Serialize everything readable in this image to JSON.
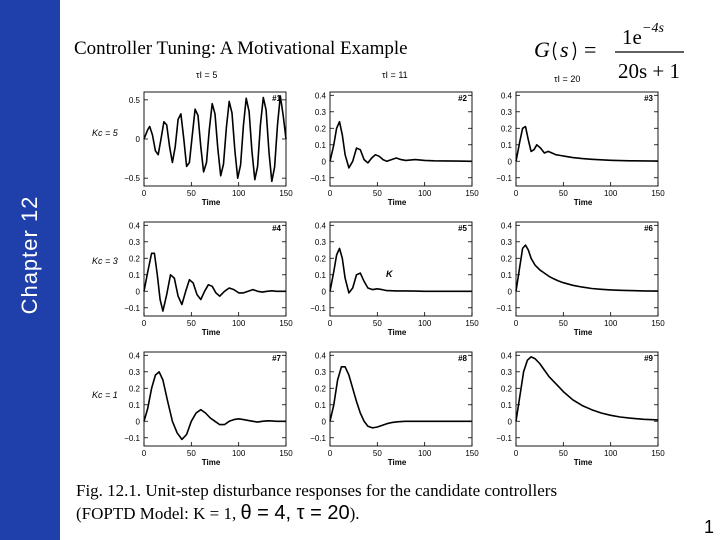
{
  "slide": {
    "chapter": "Chapter 12",
    "title": "Controller Tuning: A Motivational Example",
    "page_number": "1",
    "formula": {
      "lhs": "G",
      "arg": "s",
      "num_coef": "1e",
      "num_exp": "−4s",
      "den": "20s + 1"
    },
    "caption_line1": "Fig. 12.1. Unit-step disturbance responses for the candidate controllers",
    "caption_line2_prefix": "(FOPTD Model: K = 1,",
    "caption_line2_params": "θ = 4, τ = 20",
    "caption_line2_suffix": ").",
    "figure_extra_label": "K"
  },
  "colors": {
    "sidebar": "#1f3faa",
    "text": "#000000",
    "curve": "#000000"
  },
  "chart_data": {
    "type": "line",
    "layout": "3x3 grid",
    "column_headers": [
      "τI = 5",
      "τI = 11",
      "τI = 20"
    ],
    "row_headers": [
      "Kc = 5",
      "Kc = 3",
      "Kc = 1"
    ],
    "xlabel": "Time",
    "xticks": [
      0,
      50,
      100,
      150
    ],
    "grid": false,
    "panels": [
      {
        "label": "#1",
        "row": 0,
        "col": 0,
        "ylim": [
          -0.6,
          0.6
        ],
        "yticks": [
          -0.5,
          0,
          0.5
        ],
        "ytick_labels": [
          "−0.5",
          "0",
          "0.5"
        ],
        "x": [
          0,
          4,
          6,
          9,
          12,
          15,
          18,
          21,
          24,
          27,
          30,
          33,
          36,
          39,
          42,
          45,
          48,
          51,
          54,
          57,
          60,
          63,
          66,
          69,
          72,
          75,
          78,
          81,
          84,
          87,
          90,
          93,
          96,
          99,
          102,
          105,
          108,
          111,
          114,
          117,
          120,
          123,
          126,
          129,
          132,
          135,
          138,
          141,
          144,
          147,
          150
        ],
        "y": [
          0,
          0.12,
          0.16,
          0.05,
          -0.15,
          -0.2,
          0.0,
          0.22,
          0.18,
          -0.1,
          -0.3,
          -0.1,
          0.25,
          0.32,
          0.0,
          -0.35,
          -0.3,
          0.05,
          0.38,
          0.3,
          -0.1,
          -0.42,
          -0.3,
          0.12,
          0.45,
          0.32,
          -0.12,
          -0.47,
          -0.32,
          0.15,
          0.48,
          0.33,
          -0.15,
          -0.5,
          -0.33,
          0.17,
          0.52,
          0.35,
          -0.15,
          -0.52,
          -0.35,
          0.18,
          0.53,
          0.37,
          -0.17,
          -0.54,
          -0.36,
          0.18,
          0.55,
          0.3,
          0.0
        ]
      },
      {
        "label": "#2",
        "row": 0,
        "col": 1,
        "ylim": [
          -0.15,
          0.42
        ],
        "yticks": [
          -0.1,
          0,
          0.1,
          0.2,
          0.3,
          0.4
        ],
        "ytick_labels": [
          "−0.1",
          "0",
          "0.1",
          "0.2",
          "0.3",
          "0.4"
        ],
        "x": [
          0,
          4,
          7,
          10,
          13,
          16,
          20,
          24,
          28,
          32,
          36,
          40,
          44,
          48,
          52,
          56,
          60,
          65,
          70,
          75,
          80,
          90,
          100,
          110,
          120,
          135,
          150
        ],
        "y": [
          0,
          0.1,
          0.2,
          0.24,
          0.16,
          0.04,
          -0.04,
          0.0,
          0.08,
          0.07,
          0.01,
          -0.01,
          0.02,
          0.04,
          0.03,
          0.01,
          0.0,
          0.01,
          0.02,
          0.01,
          0.005,
          0.01,
          0.005,
          0.003,
          0.002,
          0.001,
          0.0
        ]
      },
      {
        "label": "#3",
        "row": 0,
        "col": 2,
        "ylim": [
          -0.15,
          0.42
        ],
        "yticks": [
          -0.1,
          0,
          0.1,
          0.2,
          0.3,
          0.4
        ],
        "ytick_labels": [
          "−0.1",
          "0",
          "0.1",
          "0.2",
          "0.3",
          "0.4"
        ],
        "x": [
          0,
          4,
          7,
          10,
          13,
          16,
          19,
          22,
          26,
          30,
          34,
          38,
          42,
          47,
          52,
          60,
          70,
          80,
          90,
          100,
          110,
          120,
          135,
          150
        ],
        "y": [
          0,
          0.12,
          0.2,
          0.21,
          0.13,
          0.06,
          0.07,
          0.1,
          0.08,
          0.05,
          0.06,
          0.05,
          0.04,
          0.035,
          0.03,
          0.022,
          0.016,
          0.012,
          0.009,
          0.006,
          0.004,
          0.003,
          0.002,
          0.001
        ]
      },
      {
        "label": "#4",
        "row": 1,
        "col": 0,
        "ylim": [
          -0.15,
          0.42
        ],
        "yticks": [
          -0.1,
          0,
          0.1,
          0.2,
          0.3,
          0.4
        ],
        "ytick_labels": [
          "−0.1",
          "0",
          "0.1",
          "0.2",
          "0.3",
          "0.4"
        ],
        "x": [
          0,
          4,
          8,
          11,
          14,
          17,
          20,
          24,
          28,
          32,
          36,
          40,
          44,
          48,
          52,
          56,
          60,
          64,
          68,
          72,
          76,
          80,
          85,
          90,
          95,
          100,
          105,
          110,
          115,
          120,
          125,
          130,
          135,
          140,
          145,
          150
        ],
        "y": [
          0,
          0.12,
          0.23,
          0.23,
          0.1,
          -0.05,
          -0.12,
          -0.02,
          0.1,
          0.08,
          -0.03,
          -0.08,
          0.0,
          0.07,
          0.05,
          -0.02,
          -0.05,
          0.0,
          0.04,
          0.03,
          -0.01,
          -0.03,
          0.0,
          0.02,
          0.01,
          -0.01,
          -0.01,
          0.0,
          0.01,
          0.0,
          -0.005,
          0.0,
          0.003,
          0.0,
          0.0,
          0.0
        ]
      },
      {
        "label": "#5",
        "row": 1,
        "col": 1,
        "ylim": [
          -0.15,
          0.42
        ],
        "yticks": [
          -0.1,
          0,
          0.1,
          0.2,
          0.3,
          0.4
        ],
        "ytick_labels": [
          "−0.1",
          "0",
          "0.1",
          "0.2",
          "0.3",
          "0.4"
        ],
        "x": [
          0,
          4,
          7,
          10,
          13,
          16,
          20,
          24,
          28,
          32,
          36,
          40,
          45,
          50,
          55,
          60,
          70,
          80,
          90,
          100,
          120,
          150
        ],
        "y": [
          0,
          0.12,
          0.22,
          0.26,
          0.2,
          0.08,
          -0.01,
          0.02,
          0.1,
          0.11,
          0.06,
          0.02,
          0.01,
          0.015,
          0.01,
          0.004,
          0.002,
          0.002,
          0.001,
          0.0,
          0.0,
          0.0
        ]
      },
      {
        "label": "#6",
        "row": 1,
        "col": 2,
        "ylim": [
          -0.15,
          0.42
        ],
        "yticks": [
          -0.1,
          0,
          0.1,
          0.2,
          0.3,
          0.4
        ],
        "ytick_labels": [
          "−0.1",
          "0",
          "0.1",
          "0.2",
          "0.3",
          "0.4"
        ],
        "x": [
          0,
          4,
          7,
          10,
          13,
          16,
          20,
          25,
          30,
          35,
          40,
          45,
          50,
          60,
          70,
          80,
          90,
          100,
          110,
          120,
          135,
          150
        ],
        "y": [
          0,
          0.15,
          0.26,
          0.28,
          0.25,
          0.2,
          0.16,
          0.13,
          0.11,
          0.09,
          0.075,
          0.062,
          0.052,
          0.036,
          0.025,
          0.017,
          0.012,
          0.008,
          0.006,
          0.004,
          0.002,
          0.001
        ]
      },
      {
        "label": "#7",
        "row": 2,
        "col": 0,
        "ylim": [
          -0.15,
          0.42
        ],
        "yticks": [
          -0.1,
          0,
          0.1,
          0.2,
          0.3,
          0.4
        ],
        "ytick_labels": [
          "−0.1",
          "0",
          "0.1",
          "0.2",
          "0.3",
          "0.4"
        ],
        "x": [
          0,
          4,
          8,
          12,
          16,
          20,
          25,
          30,
          35,
          40,
          45,
          50,
          55,
          60,
          65,
          70,
          75,
          80,
          85,
          90,
          95,
          100,
          105,
          110,
          115,
          120,
          125,
          130,
          135,
          140,
          145,
          150
        ],
        "y": [
          0,
          0.08,
          0.2,
          0.28,
          0.3,
          0.25,
          0.12,
          0.0,
          -0.07,
          -0.11,
          -0.08,
          0.0,
          0.05,
          0.07,
          0.05,
          0.02,
          0.0,
          -0.02,
          -0.02,
          0.0,
          0.01,
          0.015,
          0.01,
          0.005,
          0.0,
          -0.005,
          0.0,
          0.003,
          0.002,
          0.0,
          0.0,
          0.0
        ]
      },
      {
        "label": "#8",
        "row": 2,
        "col": 1,
        "ylim": [
          -0.15,
          0.42
        ],
        "yticks": [
          -0.1,
          0,
          0.1,
          0.2,
          0.3,
          0.4
        ],
        "ytick_labels": [
          "−0.1",
          "0",
          "0.1",
          "0.2",
          "0.3",
          "0.4"
        ],
        "x": [
          0,
          4,
          8,
          12,
          16,
          20,
          24,
          28,
          32,
          36,
          40,
          45,
          50,
          55,
          60,
          65,
          70,
          75,
          80,
          90,
          100,
          110,
          120,
          135,
          150
        ],
        "y": [
          0,
          0.1,
          0.25,
          0.33,
          0.33,
          0.28,
          0.2,
          0.12,
          0.05,
          0.0,
          -0.03,
          -0.04,
          -0.035,
          -0.025,
          -0.015,
          -0.008,
          -0.004,
          -0.002,
          0.0,
          0.0,
          0.0,
          0.0,
          0.0,
          0.0,
          0.0
        ]
      },
      {
        "label": "#9",
        "row": 2,
        "col": 2,
        "ylim": [
          -0.15,
          0.42
        ],
        "yticks": [
          -0.1,
          0,
          0.1,
          0.2,
          0.3,
          0.4
        ],
        "ytick_labels": [
          "−0.1",
          "0",
          "0.1",
          "0.2",
          "0.3",
          "0.4"
        ],
        "x": [
          0,
          4,
          8,
          12,
          16,
          20,
          25,
          30,
          35,
          40,
          45,
          50,
          60,
          70,
          80,
          90,
          100,
          110,
          120,
          135,
          150
        ],
        "y": [
          0,
          0.15,
          0.3,
          0.37,
          0.39,
          0.38,
          0.35,
          0.31,
          0.27,
          0.24,
          0.21,
          0.18,
          0.13,
          0.095,
          0.07,
          0.05,
          0.036,
          0.026,
          0.019,
          0.012,
          0.008
        ]
      }
    ]
  }
}
